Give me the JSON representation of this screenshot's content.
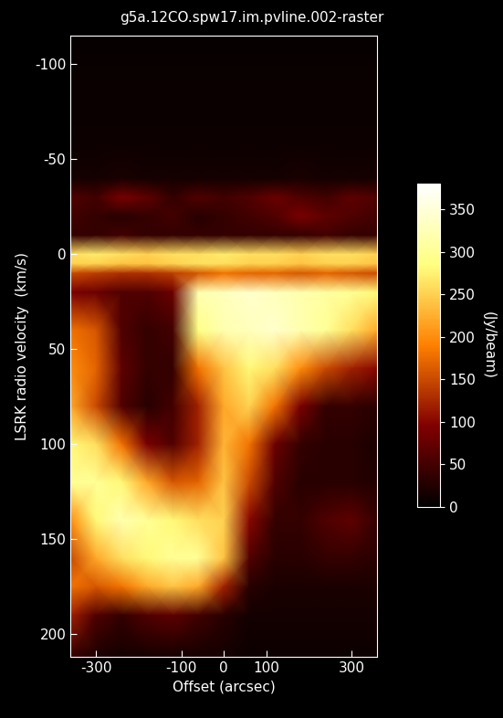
{
  "chart_data": {
    "type": "heatmap",
    "title": "g5a.12CO.spw17.im.pvline.002-raster",
    "x_label": "Offset (arcsec)",
    "y_label": "LSRK radio velocity  (km/s)",
    "xlim": [
      -360,
      360
    ],
    "ylim": [
      212,
      -115
    ],
    "xticks": [
      -300,
      -100,
      0,
      100,
      300
    ],
    "yticks": [
      -100,
      -50,
      0,
      50,
      100,
      150,
      200
    ],
    "x": [
      -360,
      -300,
      -240,
      -180,
      -120,
      -60,
      0,
      60,
      120,
      180,
      240,
      300,
      360
    ],
    "y": [
      -115,
      -90,
      -60,
      -40,
      -30,
      -20,
      -10,
      0,
      5,
      10,
      20,
      40,
      60,
      80,
      100,
      120,
      140,
      160,
      175,
      190,
      212
    ],
    "cells": [
      [
        5,
        5,
        5,
        5,
        5,
        5,
        5,
        5,
        5,
        5,
        5,
        5,
        5
      ],
      [
        8,
        8,
        8,
        8,
        8,
        8,
        8,
        8,
        8,
        8,
        8,
        8,
        8
      ],
      [
        10,
        10,
        10,
        10,
        10,
        10,
        10,
        10,
        10,
        10,
        10,
        10,
        10
      ],
      [
        15,
        15,
        20,
        15,
        15,
        15,
        15,
        15,
        15,
        20,
        15,
        15,
        15
      ],
      [
        60,
        50,
        90,
        70,
        40,
        60,
        50,
        60,
        80,
        60,
        50,
        70,
        60
      ],
      [
        50,
        40,
        30,
        40,
        50,
        30,
        40,
        50,
        60,
        90,
        70,
        60,
        50
      ],
      [
        40,
        40,
        50,
        40,
        40,
        40,
        40,
        40,
        40,
        40,
        50,
        40,
        40
      ],
      [
        260,
        270,
        260,
        250,
        260,
        260,
        270,
        260,
        260,
        250,
        260,
        260,
        250
      ],
      [
        250,
        250,
        240,
        240,
        250,
        260,
        260,
        250,
        250,
        240,
        250,
        250,
        240
      ],
      [
        150,
        140,
        130,
        130,
        140,
        160,
        180,
        170,
        170,
        160,
        170,
        160,
        150
      ],
      [
        90,
        80,
        60,
        60,
        80,
        320,
        330,
        340,
        330,
        320,
        310,
        300,
        280
      ],
      [
        180,
        160,
        60,
        40,
        50,
        290,
        320,
        330,
        340,
        320,
        300,
        260,
        220
      ],
      [
        200,
        170,
        70,
        40,
        40,
        180,
        240,
        280,
        260,
        200,
        150,
        120,
        100
      ],
      [
        220,
        150,
        60,
        30,
        50,
        120,
        220,
        250,
        180,
        90,
        40,
        40,
        30
      ],
      [
        280,
        260,
        180,
        90,
        60,
        120,
        230,
        180,
        80,
        40,
        30,
        30,
        20
      ],
      [
        300,
        300,
        280,
        220,
        160,
        170,
        240,
        150,
        60,
        30,
        30,
        30,
        25
      ],
      [
        200,
        280,
        320,
        300,
        280,
        260,
        250,
        100,
        40,
        40,
        60,
        70,
        40
      ],
      [
        150,
        220,
        260,
        280,
        300,
        300,
        240,
        60,
        30,
        30,
        40,
        40,
        30
      ],
      [
        180,
        160,
        180,
        220,
        240,
        220,
        120,
        30,
        20,
        20,
        20,
        20,
        20
      ],
      [
        120,
        60,
        40,
        60,
        70,
        50,
        30,
        15,
        15,
        15,
        15,
        15,
        15
      ],
      [
        40,
        20,
        15,
        15,
        15,
        15,
        15,
        10,
        10,
        10,
        10,
        10,
        10
      ]
    ],
    "colorbar": {
      "label": "(Jy/beam)",
      "range": [
        0,
        380
      ],
      "ticks": [
        0,
        50,
        100,
        150,
        200,
        250,
        300,
        350
      ]
    }
  }
}
